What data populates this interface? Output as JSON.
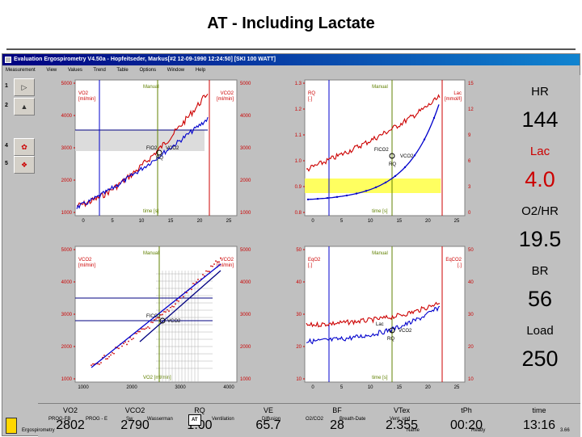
{
  "slide": {
    "title": "AT - Including Lactate"
  },
  "window": {
    "title": "Evaluation Ergospirometry V4.50a - Hopfeitseder, Markus[#2 12-09-1990 12:24:50] [SKI 100 WATT]"
  },
  "menu": [
    "Measurement",
    "View",
    "Values",
    "Trend",
    "Table",
    "Options",
    "Window",
    "Help"
  ],
  "left_tools": [
    {
      "num": "1",
      "icon": "play-icon"
    },
    {
      "num": "2",
      "icon": "mountain-icon"
    },
    {
      "num": "4",
      "icon": "flower-icon"
    },
    {
      "num": "5",
      "icon": "cube-icon"
    }
  ],
  "right_panel": [
    {
      "label": "HR",
      "value": "144",
      "color": "#000000"
    },
    {
      "label": "Lac",
      "value": "4.0",
      "color": "#cc0000"
    },
    {
      "label": "O2/HR",
      "value": "19.5",
      "color": "#000000"
    },
    {
      "label": "BR",
      "value": "56",
      "color": "#000000"
    },
    {
      "label": "Load",
      "value": "250",
      "color": "#000000"
    }
  ],
  "bottom_panel": [
    {
      "label": "VO2",
      "value": "2802"
    },
    {
      "label": "VCO2",
      "value": "2790"
    },
    {
      "label": "RQ",
      "value": "1.00"
    },
    {
      "label": "VE",
      "value": "65.7"
    },
    {
      "label": "BF",
      "value": "28"
    },
    {
      "label": "VTex",
      "value": "2.355"
    },
    {
      "label": "tPh",
      "value": "00:20"
    },
    {
      "label": "time",
      "value": "13:16"
    }
  ],
  "tabs": [
    "PROG-FB",
    "PROG - E",
    "Sw",
    "Wasserman",
    "AT",
    "Ventilation",
    "Diffusion",
    "O2/CO2",
    "Breath-Date",
    "Vent. und"
  ],
  "active_tab": "AT",
  "status": {
    "left": "Ergospirometry",
    "name": "Name",
    "ready": "Ready",
    "page": "3.66"
  },
  "charts": {
    "tl": {
      "left_ticks": [
        "5000",
        "4000",
        "3000",
        "2000",
        "1000"
      ],
      "right_ticks": [
        "5000",
        "4000",
        "3000",
        "2000",
        "1000"
      ],
      "x_ticks": [
        "0",
        "5",
        "10",
        "15",
        "20",
        "25"
      ],
      "label_left": "VO2\n[ml/min]",
      "label_right": "VCO2\n[ml/min]",
      "mode": "Manual",
      "xlabel": "time [s]",
      "ann1": "FIO2",
      "ann2": "VCO2",
      "ann3": "RQ"
    },
    "tr": {
      "left_ticks": [
        "1.3",
        "1.2",
        "1.1",
        "1.0",
        "0.9",
        "0.8"
      ],
      "right_ticks": [
        "15",
        "12",
        "9",
        "6",
        "3",
        "0"
      ],
      "x_ticks": [
        "0",
        "5",
        "10",
        "15",
        "20",
        "25"
      ],
      "label_left": "RQ\n[.]",
      "label_right": "Lac\n[mmol/l]",
      "mode": "Manual",
      "xlabel": "time [s]",
      "ann1": "FICO2",
      "ann2": "VCO2",
      "ann3": "RQ"
    },
    "bl": {
      "left_ticks": [
        "5000",
        "4000",
        "3000",
        "2000",
        "1000"
      ],
      "right_ticks": [
        "5000",
        "4000",
        "3000",
        "2000",
        "1000"
      ],
      "x_ticks": [
        "1000",
        "2000",
        "3000",
        "4000"
      ],
      "label_left": "VCO2\n[ml/min]",
      "label_right": "VCO2\n[ml/min]",
      "mode": "Manual",
      "xlabel": "VO2 [ml/min]",
      "ann1": "FICO2",
      "ann2": "VCO2"
    },
    "br": {
      "left_ticks": [
        "50",
        "40",
        "30",
        "20",
        "10"
      ],
      "right_ticks": [
        "50",
        "40",
        "30",
        "20",
        "10"
      ],
      "x_ticks": [
        "0",
        "5",
        "10",
        "15",
        "20",
        "25"
      ],
      "label_left": "EqO2\n[.]",
      "label_right": "EqCO2\n[.]",
      "mode": "Manual",
      "xlabel": "time [s]",
      "ann1": "Lac",
      "ann2": "VCO2",
      "ann3": "RQ"
    }
  },
  "colors": {
    "red": "#cc0000",
    "blue": "#0000cc",
    "green": "#608000",
    "navy": "#000080",
    "highlight": "#ffff60"
  }
}
